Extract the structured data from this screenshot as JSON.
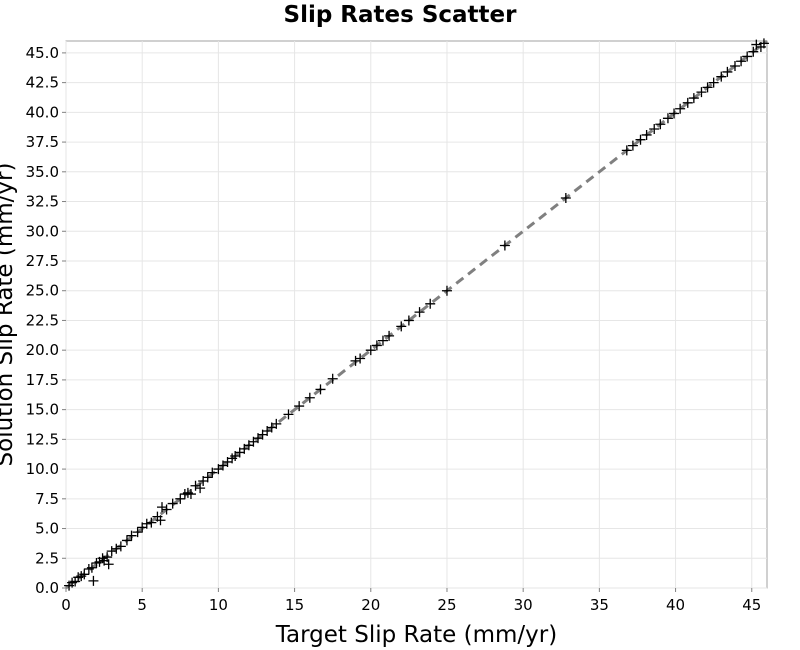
{
  "chart_data": {
    "type": "scatter",
    "title": "Slip Rates Scatter",
    "xlabel": "Target Slip Rate (mm/yr)",
    "ylabel": "Solution Slip Rate (mm/yr)",
    "xlim": [
      0,
      46
    ],
    "ylim": [
      0,
      46
    ],
    "x_ticks": [
      "0",
      "5",
      "10",
      "15",
      "20",
      "25",
      "30",
      "35",
      "40",
      "45"
    ],
    "y_ticks": [
      "0.0",
      "2.5",
      "5.0",
      "7.5",
      "10.0",
      "12.5",
      "15.0",
      "17.5",
      "20.0",
      "22.5",
      "25.0",
      "27.5",
      "30.0",
      "32.5",
      "35.0",
      "37.5",
      "40.0",
      "42.5",
      "45.0"
    ],
    "grid": true,
    "series": [
      {
        "marker": "+",
        "color": "#000000",
        "points": [
          [
            0.2,
            0.2
          ],
          [
            0.4,
            0.45
          ],
          [
            0.6,
            0.55
          ],
          [
            0.8,
            0.9
          ],
          [
            1.0,
            1.0
          ],
          [
            1.2,
            1.15
          ],
          [
            1.5,
            1.6
          ],
          [
            1.7,
            1.7
          ],
          [
            1.8,
            0.6
          ],
          [
            2.0,
            2.1
          ],
          [
            2.2,
            2.2
          ],
          [
            2.4,
            2.5
          ],
          [
            2.5,
            2.3
          ],
          [
            2.7,
            2.6
          ],
          [
            2.8,
            2.0
          ],
          [
            3.0,
            3.1
          ],
          [
            3.3,
            3.3
          ],
          [
            3.6,
            3.5
          ],
          [
            4.0,
            4.0
          ],
          [
            4.3,
            4.4
          ],
          [
            4.7,
            4.7
          ],
          [
            5.0,
            5.1
          ],
          [
            5.3,
            5.4
          ],
          [
            5.6,
            5.5
          ],
          [
            6.0,
            6.0
          ],
          [
            6.2,
            5.7
          ],
          [
            6.3,
            6.8
          ],
          [
            6.6,
            6.6
          ],
          [
            7.0,
            7.1
          ],
          [
            7.5,
            7.5
          ],
          [
            7.8,
            7.9
          ],
          [
            8.0,
            8.0
          ],
          [
            8.2,
            7.9
          ],
          [
            8.5,
            8.6
          ],
          [
            8.8,
            8.4
          ],
          [
            9.0,
            9.0
          ],
          [
            9.3,
            9.3
          ],
          [
            9.6,
            9.7
          ],
          [
            10.0,
            10.0
          ],
          [
            10.3,
            10.3
          ],
          [
            10.6,
            10.6
          ],
          [
            10.9,
            10.9
          ],
          [
            11.1,
            11.1
          ],
          [
            11.4,
            11.4
          ],
          [
            11.7,
            11.7
          ],
          [
            12.0,
            12.0
          ],
          [
            12.3,
            12.3
          ],
          [
            12.6,
            12.6
          ],
          [
            12.9,
            12.9
          ],
          [
            13.2,
            13.2
          ],
          [
            13.5,
            13.5
          ],
          [
            13.8,
            13.8
          ],
          [
            14.6,
            14.6
          ],
          [
            15.3,
            15.3
          ],
          [
            16.0,
            16.0
          ],
          [
            16.7,
            16.7
          ],
          [
            17.5,
            17.6
          ],
          [
            19.0,
            19.1
          ],
          [
            19.3,
            19.3
          ],
          [
            20.0,
            20.0
          ],
          [
            20.4,
            20.4
          ],
          [
            20.8,
            20.8
          ],
          [
            21.2,
            21.2
          ],
          [
            22.0,
            22.0
          ],
          [
            22.5,
            22.5
          ],
          [
            23.2,
            23.2
          ],
          [
            23.9,
            23.9
          ],
          [
            25.0,
            25.0
          ],
          [
            28.8,
            28.8
          ],
          [
            32.8,
            32.8
          ],
          [
            36.8,
            36.8
          ],
          [
            37.2,
            37.2
          ],
          [
            37.7,
            37.7
          ],
          [
            38.1,
            38.1
          ],
          [
            38.6,
            38.6
          ],
          [
            39.0,
            39.0
          ],
          [
            39.5,
            39.5
          ],
          [
            39.9,
            39.9
          ],
          [
            40.3,
            40.3
          ],
          [
            40.8,
            40.8
          ],
          [
            41.2,
            41.2
          ],
          [
            41.7,
            41.7
          ],
          [
            42.1,
            42.1
          ],
          [
            42.5,
            42.5
          ],
          [
            43.0,
            43.0
          ],
          [
            43.4,
            43.4
          ],
          [
            43.9,
            43.9
          ],
          [
            44.3,
            44.3
          ],
          [
            44.7,
            44.7
          ],
          [
            45.1,
            45.1
          ],
          [
            45.3,
            45.7
          ],
          [
            45.6,
            45.5
          ],
          [
            45.8,
            45.8
          ]
        ]
      },
      {
        "type": "line",
        "style": "dashed",
        "color": "#808080",
        "points": [
          [
            0,
            0
          ],
          [
            46,
            46
          ]
        ]
      }
    ]
  }
}
